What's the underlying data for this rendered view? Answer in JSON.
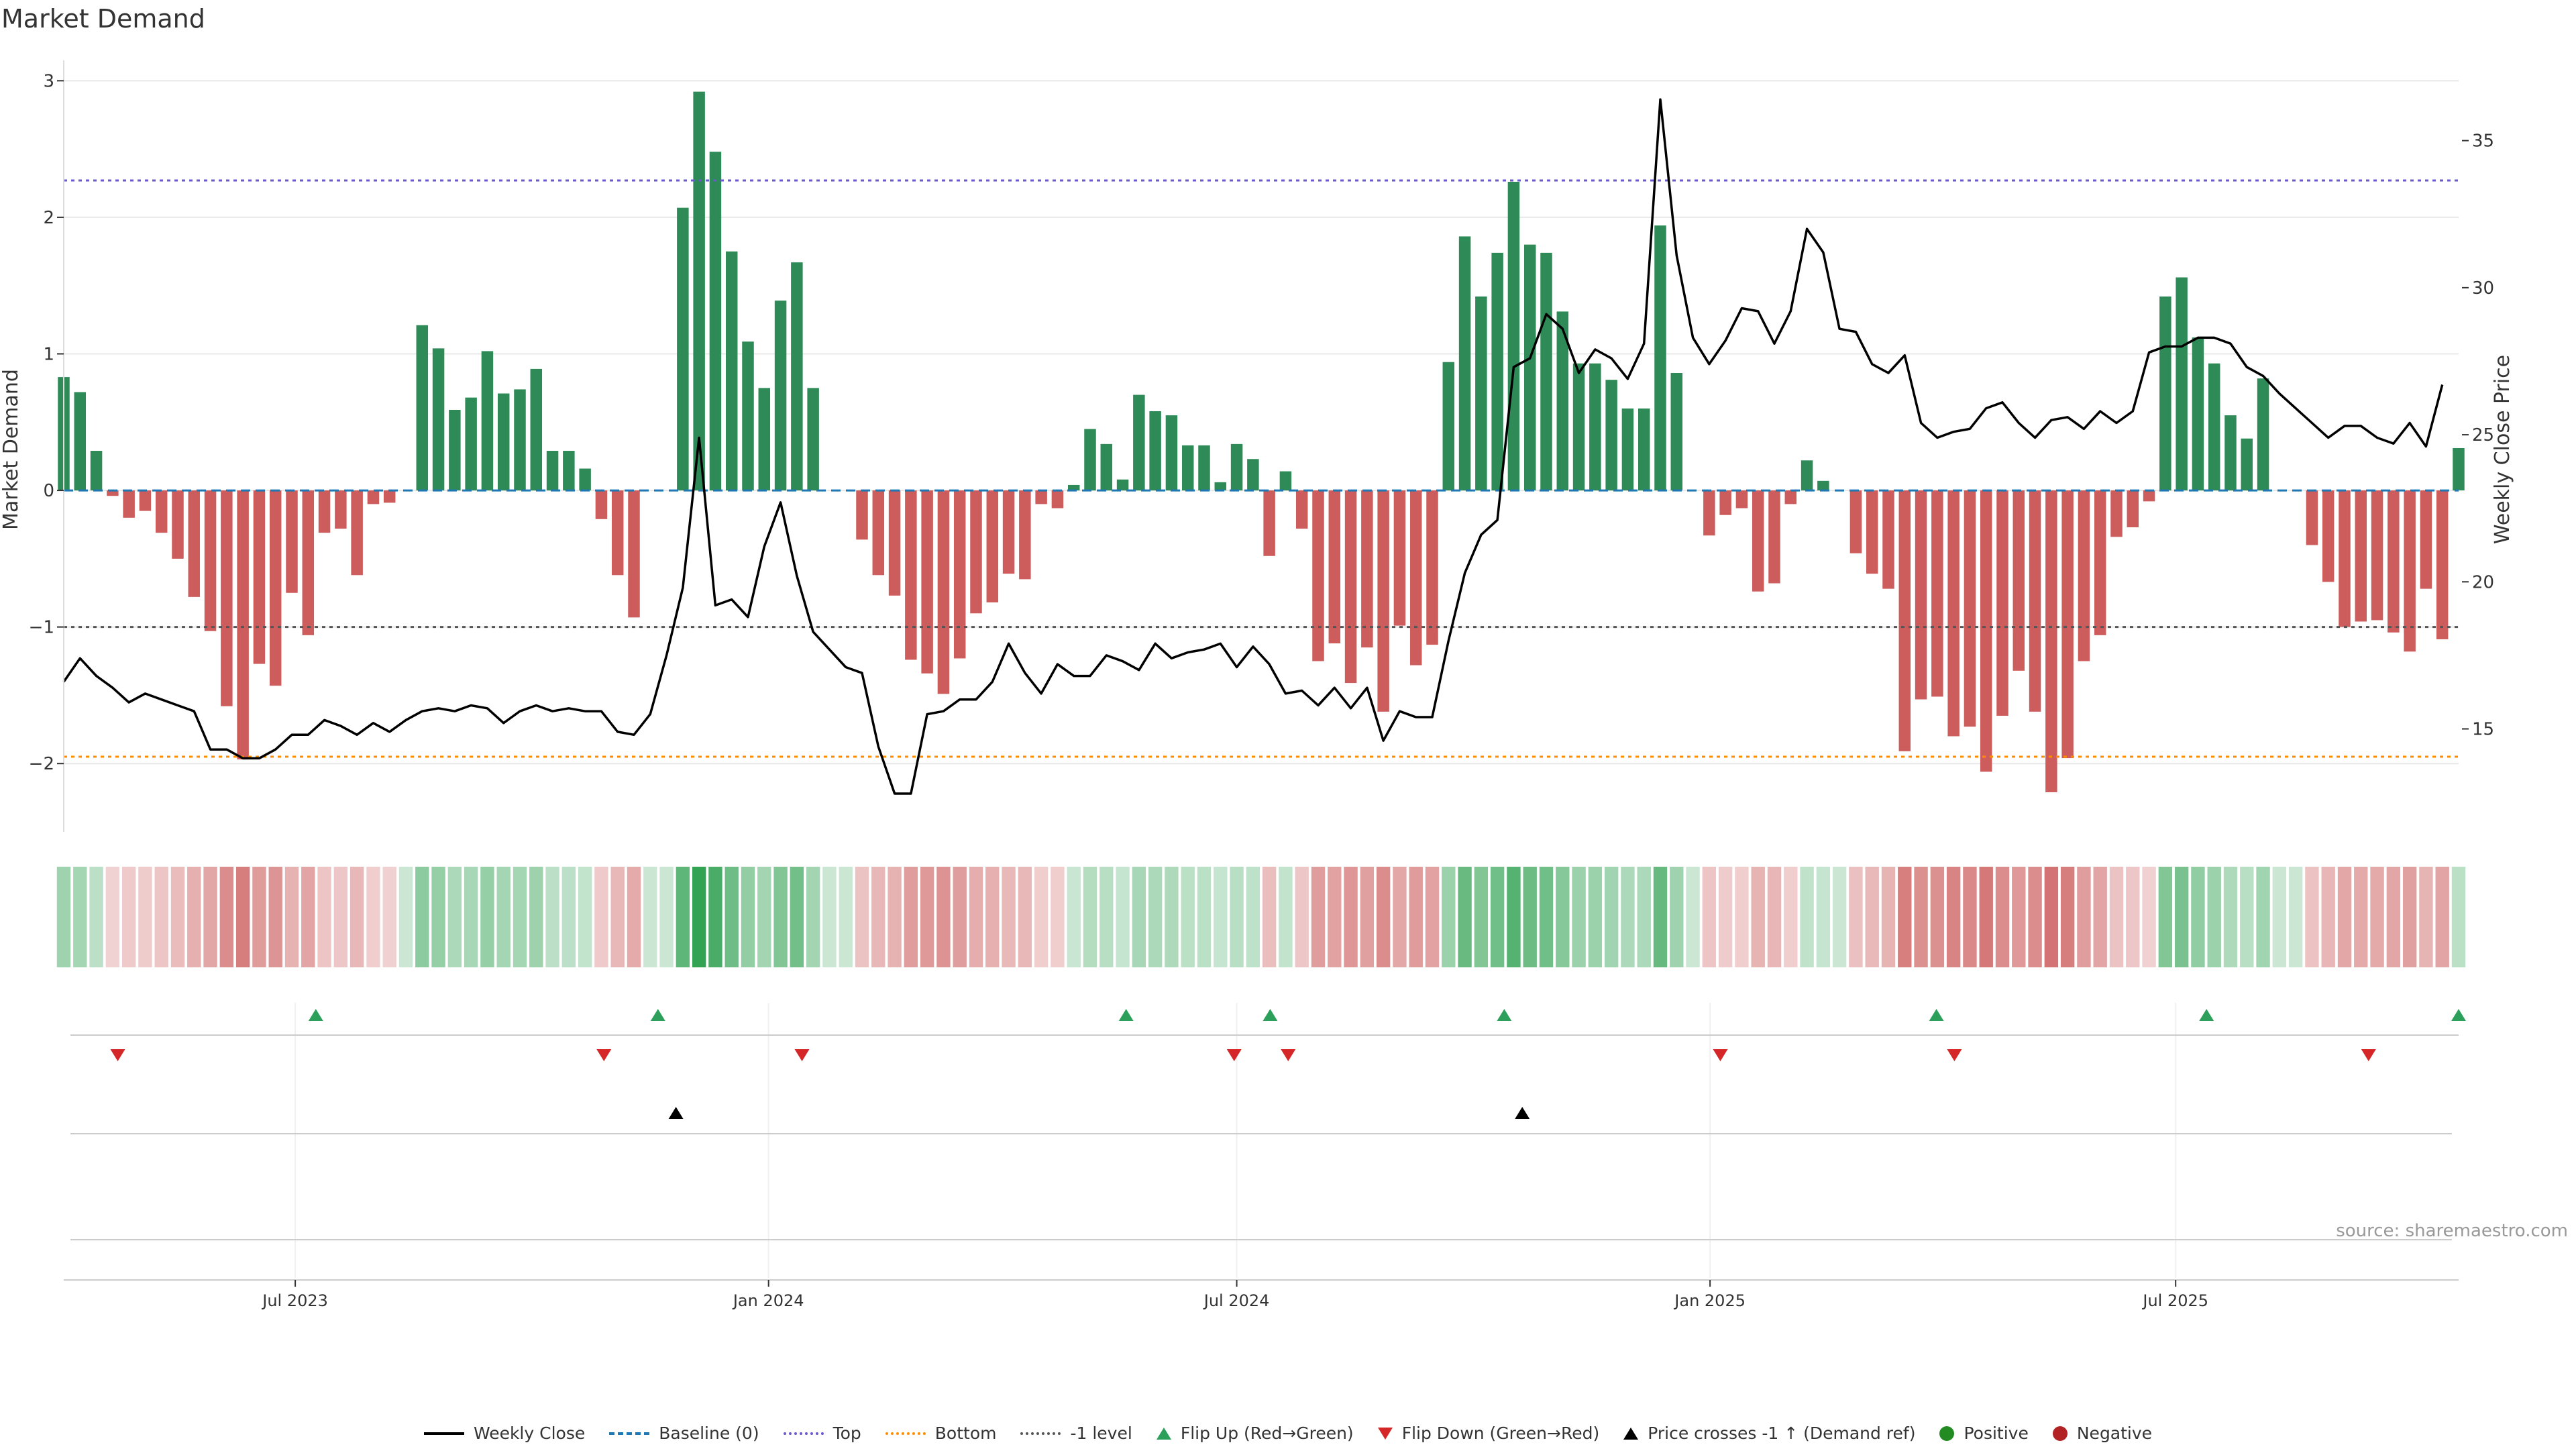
{
  "title": "Market Demand",
  "source": "source: sharemaestro.com",
  "colors": {
    "positive_bar": "#2e8b57",
    "negative_bar": "#cd5c5c",
    "price_line": "#000000",
    "top_line": "#6a5acd",
    "bottom_line": "#ff8c00",
    "minus1_line": "#555555",
    "flip_up": "#2ca05a",
    "flip_down": "#d62728",
    "cross_marker": "#000000",
    "positive_dot": "#228b22",
    "negative_dot": "#b22222"
  },
  "legend": [
    {
      "label": "Weekly Close",
      "symbol": "line",
      "color": "#000000"
    },
    {
      "label": "Baseline (0)",
      "symbol": "dash",
      "color": "#1f77b4"
    },
    {
      "label": "Top",
      "symbol": "dot",
      "color": "#6a5acd"
    },
    {
      "label": "Bottom",
      "symbol": "dot",
      "color": "#ff8c00"
    },
    {
      "label": "-1 level",
      "symbol": "dot",
      "color": "#555555"
    },
    {
      "label": "Flip Up (Red→Green)",
      "symbol": "tri-up",
      "color": "#2ca05a"
    },
    {
      "label": "Flip Down (Green→Red)",
      "symbol": "tri-down",
      "color": "#d62728"
    },
    {
      "label": "Price crosses -1 ↑ (Demand ref)",
      "symbol": "tri-up",
      "color": "#000000"
    },
    {
      "label": "Positive",
      "symbol": "circle",
      "color": "#228b22"
    },
    {
      "label": "Negative",
      "symbol": "circle",
      "color": "#b22222"
    }
  ],
  "chart_data": {
    "type": "bar",
    "title": "Market Demand",
    "ylabel": "Market Demand",
    "y2label": "Weekly Close Price",
    "ylim": [
      -2.5,
      3.1
    ],
    "yticks": [
      -2,
      -1,
      0,
      1,
      2,
      3
    ],
    "ytick_labels": [
      "−2",
      "−1",
      "0",
      "1",
      "2",
      "3"
    ],
    "y2lim": [
      11.5,
      37.5
    ],
    "y2ticks": [
      15,
      20,
      25,
      30,
      35
    ],
    "x_start": "2023-04-02",
    "x_end": "2025-10-19",
    "xticks": [
      {
        "date": "2023-07-01",
        "label": "Jul 2023"
      },
      {
        "date": "2024-01-01",
        "label": "Jan 2024"
      },
      {
        "date": "2024-07-01",
        "label": "Jul 2024"
      },
      {
        "date": "2025-01-01",
        "label": "Jan 2025"
      },
      {
        "date": "2025-07-01",
        "label": "Jul 2025"
      }
    ],
    "reference_lines": {
      "baseline": 0,
      "top": 2.27,
      "bottom": -1.95,
      "minus1": -1
    },
    "series": [
      {
        "name": "Market Demand",
        "kind": "bar",
        "values": [
          0.83,
          0.72,
          0.29,
          -0.04,
          -0.2,
          -0.15,
          -0.31,
          -0.5,
          -0.78,
          -1.03,
          -1.58,
          -1.97,
          -1.27,
          -1.43,
          -0.75,
          -1.06,
          -0.31,
          -0.28,
          -0.62,
          -0.1,
          -0.09,
          0.0,
          1.21,
          1.04,
          0.59,
          0.68,
          1.02,
          0.71,
          0.74,
          0.89,
          0.29,
          0.29,
          0.16,
          -0.21,
          -0.62,
          -0.93,
          0.0,
          0.0,
          2.07,
          2.92,
          2.48,
          1.75,
          1.09,
          0.75,
          1.39,
          1.67,
          0.75,
          0.0,
          0.0,
          -0.36,
          -0.62,
          -0.77,
          -1.24,
          -1.34,
          -1.49,
          -1.23,
          -0.9,
          -0.82,
          -0.61,
          -0.65,
          -0.1,
          -0.13,
          0.04,
          0.45,
          0.34,
          0.08,
          0.7,
          0.58,
          0.55,
          0.33,
          0.33,
          0.06,
          0.34,
          0.23,
          -0.48,
          0.14,
          -0.28,
          -1.25,
          -1.12,
          -1.41,
          -1.15,
          -1.62,
          -0.99,
          -1.28,
          -1.13,
          0.94,
          1.86,
          1.42,
          1.74,
          2.26,
          1.8,
          1.74,
          1.31,
          0.93,
          0.93,
          0.81,
          0.6,
          0.6,
          1.94,
          0.86,
          0.0,
          -0.33,
          -0.18,
          -0.13,
          -0.74,
          -0.68,
          -0.1,
          0.22,
          0.07,
          0.0,
          -0.46,
          -0.61,
          -0.72,
          -1.91,
          -1.53,
          -1.51,
          -1.8,
          -1.73,
          -2.06,
          -1.65,
          -1.32,
          -1.62,
          -2.21,
          -1.96,
          -1.25,
          -1.06,
          -0.34,
          -0.27,
          -0.08,
          1.42,
          1.56,
          1.12,
          0.93,
          0.55,
          0.38,
          0.82,
          0.0,
          0.0,
          -0.4,
          -0.67,
          -1.0,
          -0.96,
          -0.95,
          -1.04,
          -1.18,
          -0.72,
          -1.09,
          0.31
        ]
      },
      {
        "name": "Weekly Close",
        "kind": "line",
        "values": [
          16.6,
          17.4,
          16.8,
          16.4,
          15.9,
          16.2,
          16.0,
          15.8,
          15.6,
          14.3,
          14.3,
          14.0,
          14.0,
          14.3,
          14.8,
          14.8,
          15.3,
          15.1,
          14.8,
          15.2,
          14.9,
          15.3,
          15.6,
          15.7,
          15.6,
          15.8,
          15.7,
          15.2,
          15.6,
          15.8,
          15.6,
          15.7,
          15.6,
          15.6,
          14.9,
          14.8,
          15.5,
          17.5,
          19.8,
          24.9,
          19.2,
          19.4,
          18.8,
          21.2,
          22.7,
          20.2,
          18.3,
          17.7,
          17.1,
          16.9,
          14.4,
          12.8,
          12.8,
          15.5,
          15.6,
          16.0,
          16.0,
          16.6,
          17.9,
          16.9,
          16.2,
          17.2,
          16.8,
          16.8,
          17.5,
          17.3,
          17.0,
          17.9,
          17.4,
          17.6,
          17.7,
          17.9,
          17.1,
          17.8,
          17.2,
          16.2,
          16.3,
          15.8,
          16.4,
          15.7,
          16.4,
          14.6,
          15.6,
          15.4,
          15.4,
          18.0,
          20.3,
          21.6,
          22.1,
          27.3,
          27.6,
          29.1,
          28.6,
          27.1,
          27.9,
          27.6,
          26.9,
          28.1,
          36.4,
          31.1,
          28.3,
          27.4,
          28.2,
          29.3,
          29.2,
          28.1,
          29.2,
          32.0,
          31.2,
          28.6,
          28.5,
          27.4,
          27.1,
          27.7,
          25.4,
          24.9,
          25.1,
          25.2,
          25.9,
          26.1,
          25.4,
          24.9,
          25.5,
          25.6,
          25.2,
          25.8,
          25.4,
          25.8,
          27.8,
          28.0,
          28.0,
          28.3,
          28.3,
          28.1,
          27.3,
          27.0,
          26.4,
          25.9,
          25.4,
          24.9,
          25.3,
          25.3,
          24.9,
          24.7,
          25.4,
          24.6,
          26.7
        ]
      }
    ],
    "heat_strip": "Market Demand intensity per week (green = positive, red = negative)",
    "events": {
      "flip_up": [
        "2023-07-09",
        "2023-11-19",
        "2024-05-19",
        "2024-07-14",
        "2024-10-13",
        "2025-03-30",
        "2025-07-13",
        "2025-10-19"
      ],
      "flip_down": [
        "2023-04-23",
        "2023-10-29",
        "2024-01-14",
        "2024-06-30",
        "2024-07-21",
        "2025-01-05",
        "2025-04-06",
        "2025-09-14"
      ],
      "price_cross_up_minus1": [
        "2023-11-26",
        "2024-10-20"
      ]
    }
  }
}
